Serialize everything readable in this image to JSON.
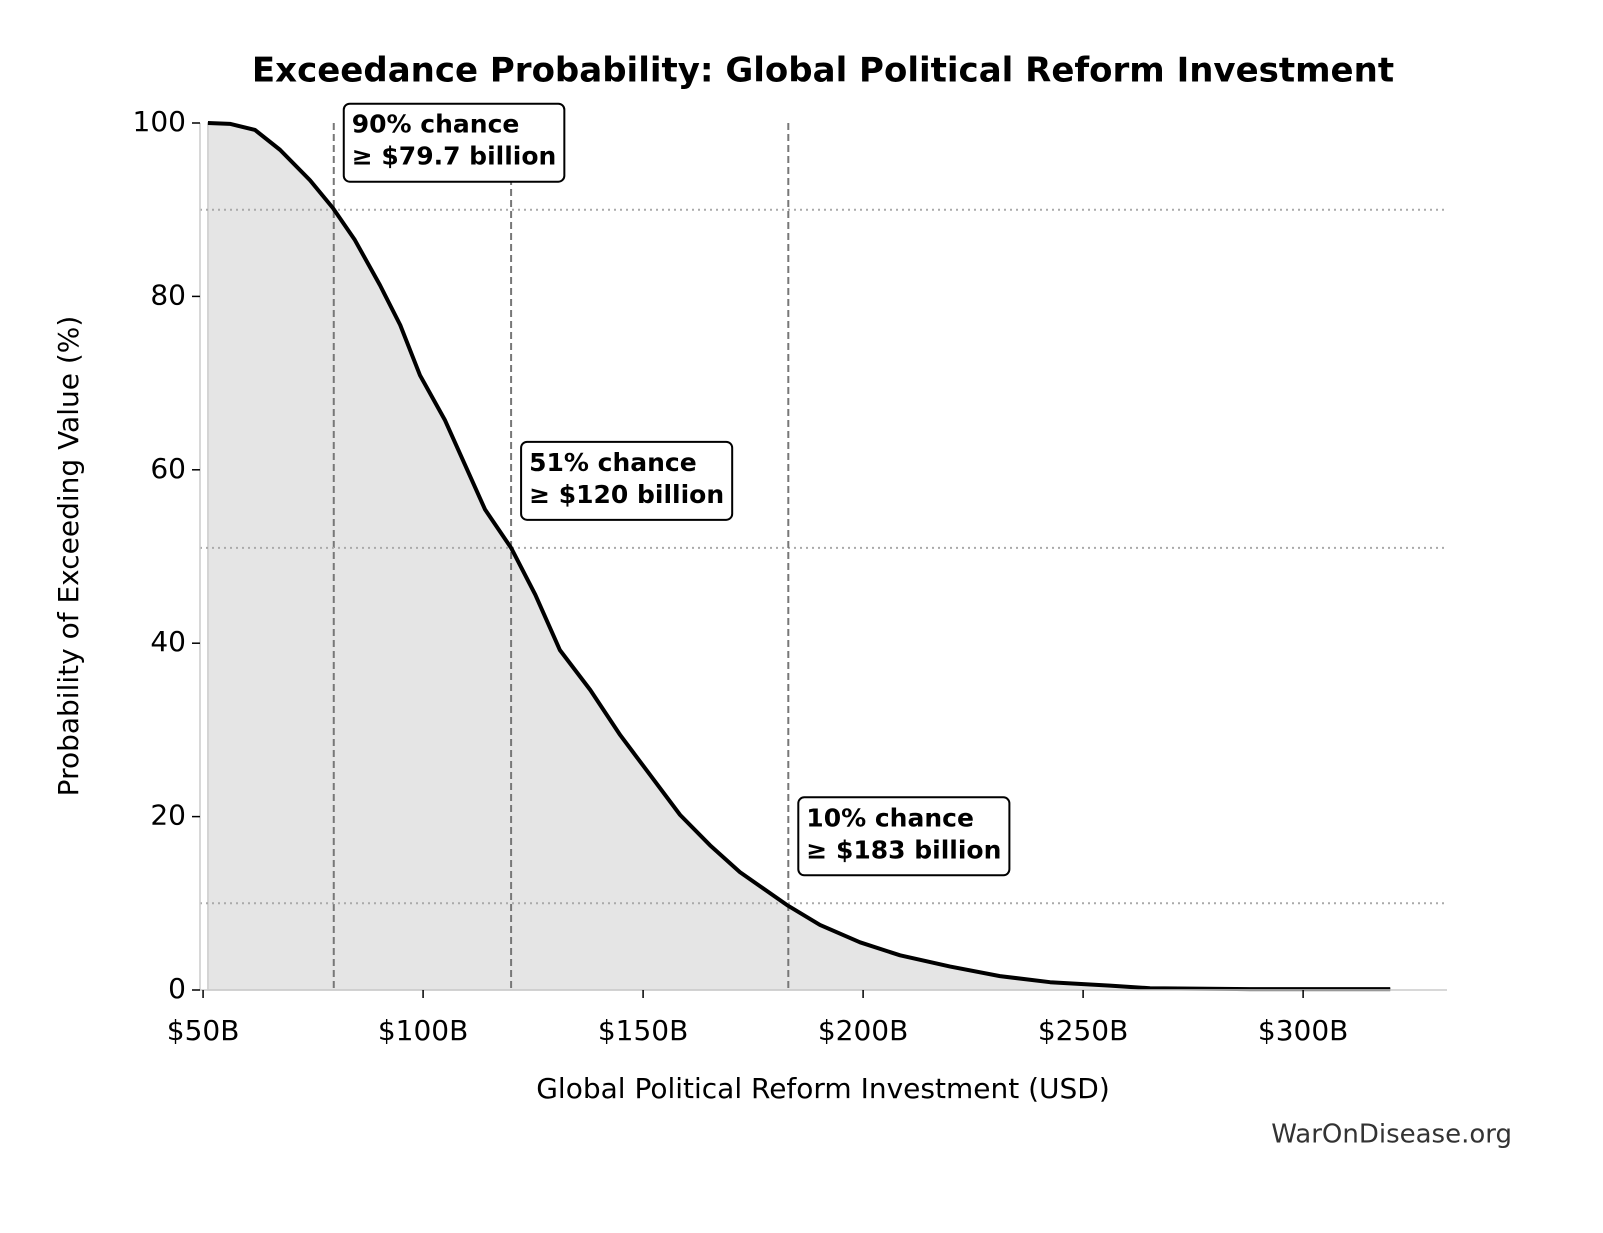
{
  "chart_data": {
    "type": "line",
    "title": "Exceedance Probability: Global Political Reform Investment",
    "xlabel": "Global Political Reform Investment (USD)",
    "ylabel": "Probability of Exceeding Value (%)",
    "source": "WarOnDisease.org",
    "xlim": [
      49.3,
      332.7
    ],
    "ylim": [
      0,
      100
    ],
    "xticks": [
      {
        "value": 50,
        "label": "$50B"
      },
      {
        "value": 100,
        "label": "$100B"
      },
      {
        "value": 150,
        "label": "$150B"
      },
      {
        "value": 200,
        "label": "$200B"
      },
      {
        "value": 250,
        "label": "$250B"
      },
      {
        "value": 300,
        "label": "$300B"
      }
    ],
    "yticks": [
      0,
      20,
      40,
      60,
      80,
      100
    ],
    "color": "#000000",
    "fill_color": "#e5e5e5",
    "x": [
      51.1,
      56.1,
      61.8,
      67.5,
      74.3,
      79.5,
      84.5,
      90.2,
      94.8,
      99.3,
      105,
      109.5,
      114.1,
      120,
      125.5,
      131.1,
      138,
      144.8,
      151.6,
      158.4,
      165.2,
      172,
      182.7,
      190.2,
      199.3,
      208.4,
      219.8,
      231.1,
      242.5,
      256.1,
      265.2,
      288,
      319.8
    ],
    "values": [
      100,
      99.9,
      99.2,
      96.9,
      93.4,
      90.2,
      86.5,
      81.3,
      76.7,
      70.9,
      65.7,
      60.6,
      55.4,
      51,
      45.6,
      39.2,
      34.6,
      29.4,
      24.8,
      20.2,
      16.7,
      13.6,
      9.8,
      7.5,
      5.5,
      4.0,
      2.7,
      1.6,
      0.9,
      0.5,
      0.2,
      0.1,
      0.1
    ],
    "annotations": [
      {
        "lines": [
          "90% chance",
          "≥ $79.7 billion"
        ],
        "x": 79.7,
        "y": 90
      },
      {
        "lines": [
          "51% chance",
          "≥ $120 billion"
        ],
        "x": 120,
        "y": 51
      },
      {
        "lines": [
          "10% chance",
          "≥ $183 billion"
        ],
        "x": 183,
        "y": 10
      }
    ]
  }
}
